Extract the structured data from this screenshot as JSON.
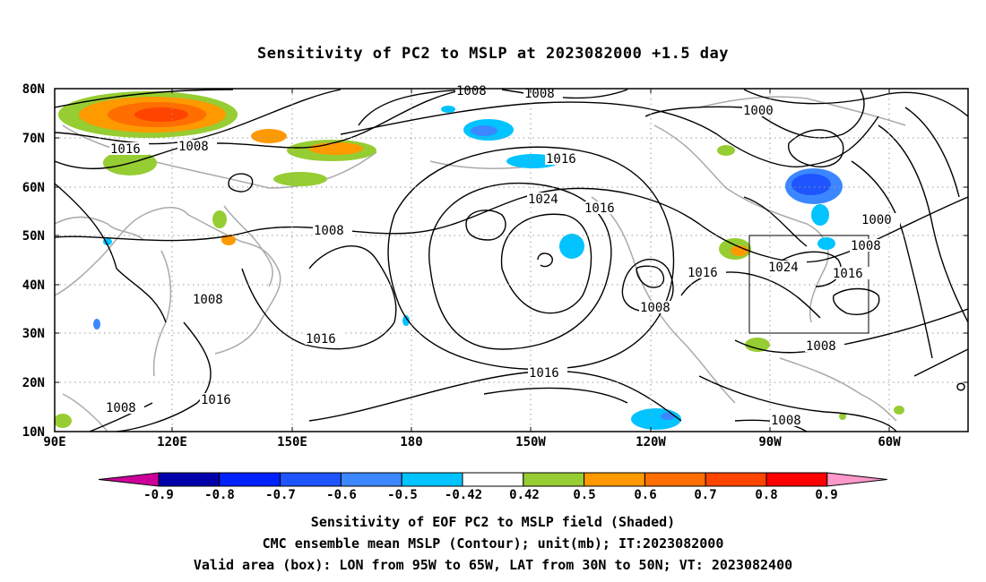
{
  "title": "Sensitivity of PC2 to MSLP at 2023082000 +1.5 day",
  "map": {
    "lat_labels": [
      "80N",
      "70N",
      "60N",
      "50N",
      "40N",
      "30N",
      "20N",
      "10N"
    ],
    "lon_labels": [
      "90E",
      "120E",
      "150E",
      "180",
      "150W",
      "120W",
      "90W",
      "60W"
    ],
    "valid_box": {
      "lon_from": "95W",
      "lon_to": "65W",
      "lat_from": "30N",
      "lat_to": "50N"
    },
    "contour_labels": [
      "1008",
      "1008",
      "1000",
      "1016",
      "1008",
      "1016",
      "1024",
      "1016",
      "1000",
      "1008",
      "1008",
      "1016",
      "1024",
      "1016",
      "1008",
      "1008",
      "1016",
      "1008",
      "1016",
      "1016",
      "1008",
      "1008"
    ]
  },
  "colorbar": {
    "labels": [
      "-0.9",
      "-0.8",
      "-0.7",
      "-0.6",
      "-0.5",
      "-0.42",
      "0.42",
      "0.5",
      "0.6",
      "0.7",
      "0.8",
      "0.9"
    ],
    "colors": [
      "#0000aa",
      "#0022ff",
      "#1e55ff",
      "#3c87ff",
      "#00c3ff",
      "#ffffff",
      "#96cd32",
      "#ff9900",
      "#ff6e00",
      "#ff4400",
      "#ff0000"
    ],
    "low_end_color": "#cc0099",
    "high_end_color": "#ff99cc"
  },
  "captions": {
    "line1": "Sensitivity of EOF PC2 to MSLP field (Shaded)",
    "line2": "CMC ensemble mean MSLP (Contour); unit(mb); IT:2023082000",
    "line3": "Valid area (box): LON from 95W to 65W, LAT from 30N to 50N; VT: 2023082400"
  }
}
